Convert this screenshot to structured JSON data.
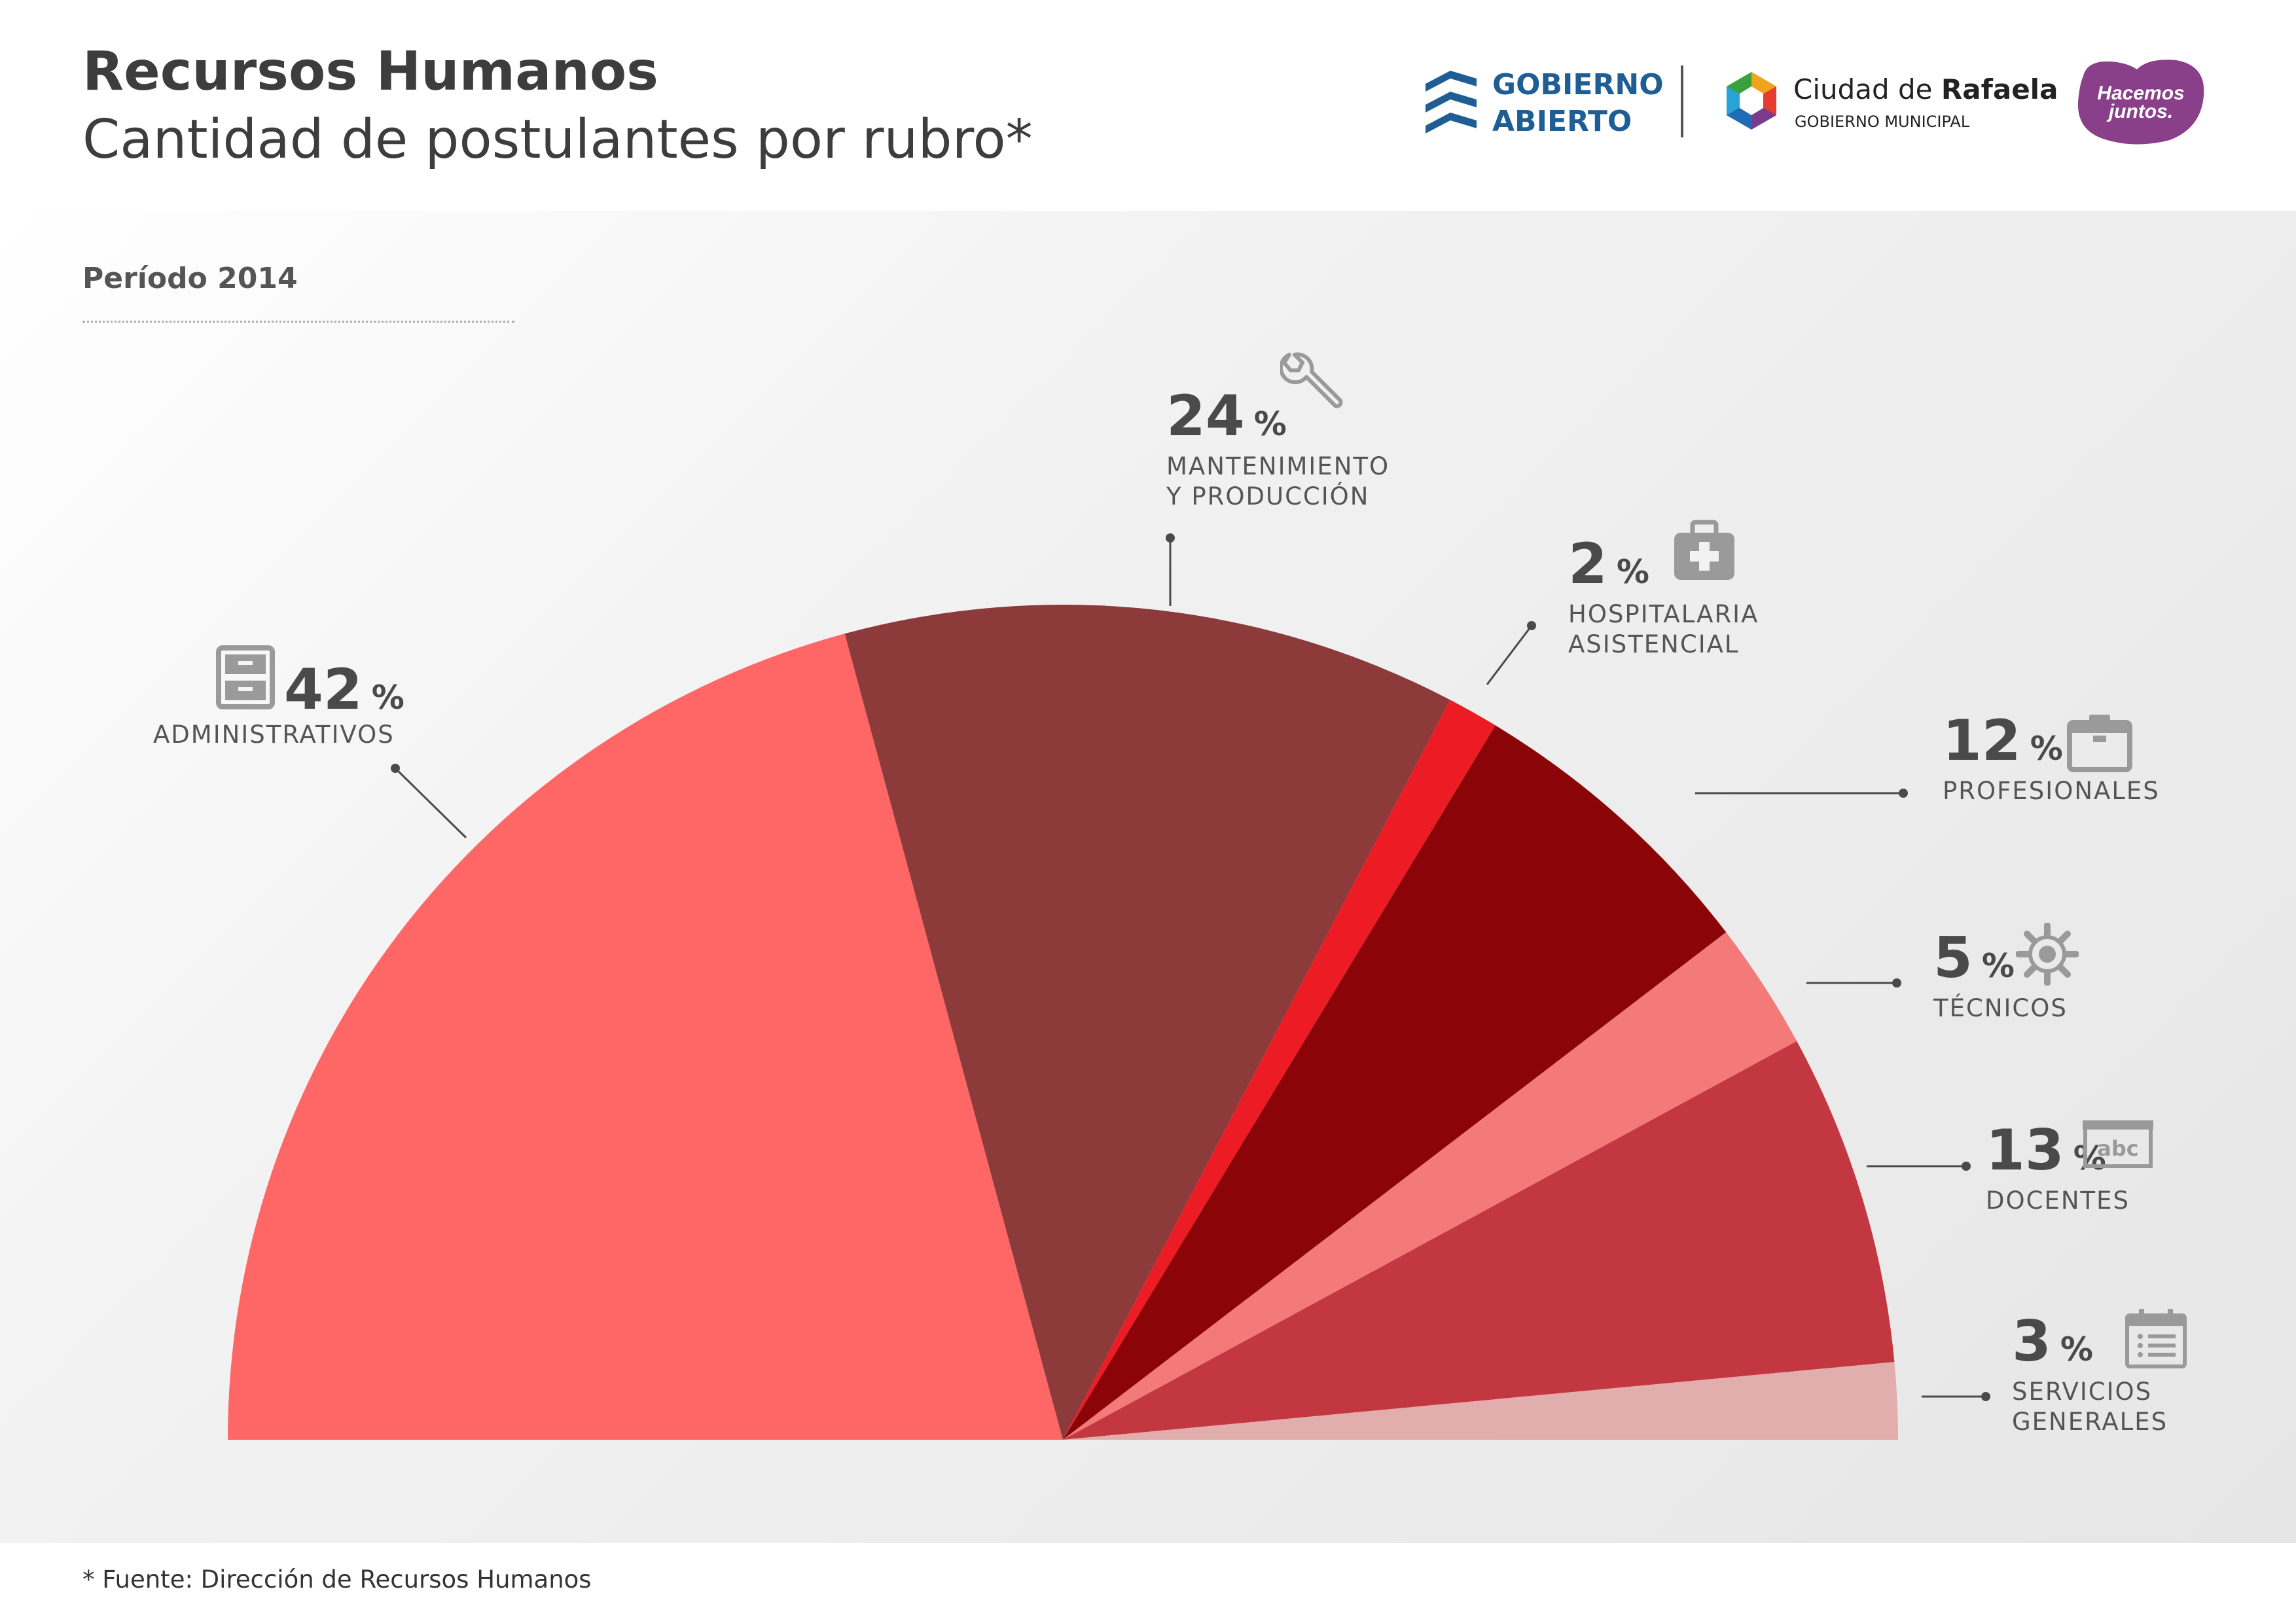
{
  "header": {
    "title": "Recursos Humanos",
    "subtitle": "Cantidad de postulantes por rubro*"
  },
  "logos": {
    "gobierno_line1": "GOBIERNO",
    "gobierno_line2": "ABIERTO",
    "city_prefix": "Ciudad de",
    "city_name": "Rafaela",
    "city_sub": "GOBIERNO MUNICIPAL",
    "hacemos_line1": "Hacemos",
    "hacemos_line2": "juntos."
  },
  "period": "Período 2014",
  "footer": {
    "source": "* Fuente: Dirección de Recursos Humanos"
  },
  "colors": {
    "administrativos": "#ff6666",
    "mantenimiento": "#8c3a3a",
    "hospitalaria": "#ed1c24",
    "profesionales": "#8b0508",
    "tecnicos": "#f47a7a",
    "docentes": "#c33840",
    "servicios": "#e2adad",
    "gobierno_blue": "#1f5e94",
    "hacemos_purple": "#8a3f8a"
  },
  "chart_data": {
    "type": "pie",
    "layout": "half-pie",
    "unit": "%",
    "slices": [
      {
        "key": "administrativos",
        "label": "ADMINISTRATIVOS",
        "label_line2": "",
        "value": 42,
        "icon": "filing-cabinet-icon"
      },
      {
        "key": "mantenimiento",
        "label": "MANTENIMIENTO",
        "label_line2": "Y PRODUCCIÓN",
        "value": 24,
        "icon": "wrench-icon"
      },
      {
        "key": "hospitalaria",
        "label": "HOSPITALARIA",
        "label_line2": "ASISTENCIAL",
        "value": 2,
        "icon": "medical-kit-icon"
      },
      {
        "key": "profesionales",
        "label": "PROFESIONALES",
        "label_line2": "",
        "value": 12,
        "icon": "briefcase-icon"
      },
      {
        "key": "tecnicos",
        "label": "TÉCNICOS",
        "label_line2": "",
        "value": 5,
        "icon": "gear-icon"
      },
      {
        "key": "docentes",
        "label": "DOCENTES",
        "label_line2": "",
        "value": 13,
        "icon": "chalkboard-abc-icon"
      },
      {
        "key": "servicios",
        "label": "SERVICIOS",
        "label_line2": "GENERALES",
        "value": 3,
        "icon": "calendar-list-icon"
      }
    ]
  }
}
